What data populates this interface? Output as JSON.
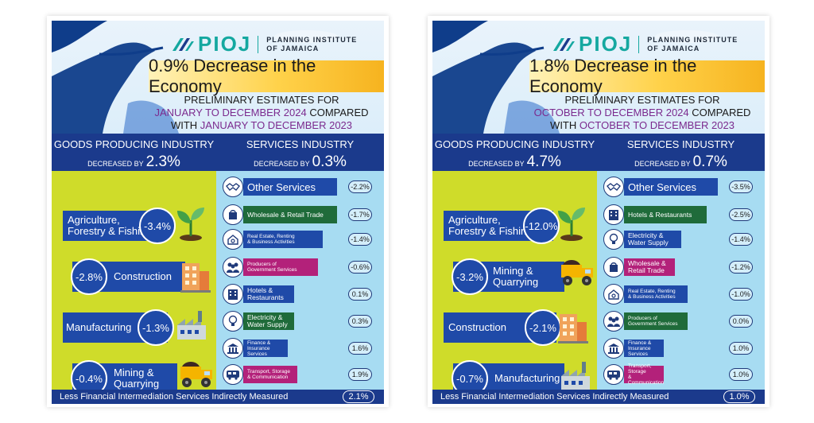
{
  "left": {
    "logo": {
      "brand": "PIOJ",
      "org_line1": "PLANNING INSTITUTE",
      "org_line2": "OF JAMAICA"
    },
    "headline": "0.9% Decrease in the Economy",
    "prelim_line1": "PRELIMINARY ESTIMATES FOR",
    "period_current": "JANUARY TO DECEMBER 2024",
    "compared": " COMPARED",
    "with_text": "WITH ",
    "period_prior": "JANUARY TO DECEMBER 2023",
    "goods": {
      "title": "GOODS PRODUCING INDUSTRY",
      "decreased_by": "DECREASED BY",
      "value": "2.3%"
    },
    "services": {
      "title": "SERVICES INDUSTRY",
      "decreased_by": "DECREASED BY",
      "value": "0.3%"
    },
    "goods_items": [
      {
        "label": "Agriculture,\nForestry & Fishing",
        "value": "-3.4%",
        "icon": "plant-icon"
      },
      {
        "label": "Construction",
        "value": "-2.8%",
        "icon": "building-icon"
      },
      {
        "label": "Manufacturing",
        "value": "-1.3%",
        "icon": "factory-icon"
      },
      {
        "label": "Mining &\nQuarrying",
        "value": "-0.4%",
        "icon": "truck-icon"
      }
    ],
    "service_items": [
      {
        "label": "Other Services",
        "value": "-2.2%",
        "icon": "handshake-icon"
      },
      {
        "label": "Wholesale & Retail Trade",
        "value": "-1.7%",
        "icon": "bag-icon"
      },
      {
        "label": "Real Estate, Renting\n& Business Activities",
        "value": "-1.4%",
        "icon": "house-search-icon"
      },
      {
        "label": "Producers of\nGovernment Services",
        "value": "-0.6%",
        "icon": "people-icon"
      },
      {
        "label": "Hotels &\nRestaurants",
        "value": "0.1%",
        "icon": "hotel-icon"
      },
      {
        "label": "Electricity &\nWater Supply",
        "value": "0.3%",
        "icon": "bulb-icon"
      },
      {
        "label": "Finance &\nInsurance\nServices",
        "value": "1.6%",
        "icon": "bank-icon"
      },
      {
        "label": "Transport, Storage\n& Communication",
        "value": "1.9%",
        "icon": "bus-icon"
      }
    ],
    "footer": {
      "label": "Less Financial Intermediation Services Indirectly Measured",
      "value": "2.1%"
    }
  },
  "right": {
    "logo": {
      "brand": "PIOJ",
      "org_line1": "PLANNING INSTITUTE",
      "org_line2": "OF JAMAICA"
    },
    "headline": "1.8% Decrease in the Economy",
    "prelim_line1": "PRELIMINARY ESTIMATES FOR",
    "period_current": "OCTOBER TO DECEMBER 2024",
    "compared": " COMPARED",
    "with_text": "WITH ",
    "period_prior": "OCTOBER TO DECEMBER 2023",
    "goods": {
      "title": "GOODS PRODUCING INDUSTRY",
      "decreased_by": "DECREASED BY",
      "value": "4.7%"
    },
    "services": {
      "title": "SERVICES INDUSTRY",
      "decreased_by": "DECREASED BY",
      "value": "0.7%"
    },
    "goods_items": [
      {
        "label": "Agriculture,\nForestry & Fishing",
        "value": "-12.0%",
        "icon": "plant-icon"
      },
      {
        "label": "Mining &\nQuarrying",
        "value": "-3.2%",
        "icon": "truck-icon"
      },
      {
        "label": "Construction",
        "value": "-2.1%",
        "icon": "building-icon"
      },
      {
        "label": "Manufacturing",
        "value": "-0.7%",
        "icon": "factory-icon"
      }
    ],
    "service_items": [
      {
        "label": "Other Services",
        "value": "-3.5%",
        "icon": "handshake-icon"
      },
      {
        "label": "Hotels & Restaurants",
        "value": "-2.5%",
        "icon": "hotel-icon"
      },
      {
        "label": "Electricity &\nWater Supply",
        "value": "-1.4%",
        "icon": "bulb-icon"
      },
      {
        "label": "Wholesale &\nRetail Trade",
        "value": "-1.2%",
        "icon": "bag-icon"
      },
      {
        "label": "Real Estate, Renting\n& Business Activities",
        "value": "-1.0%",
        "icon": "house-search-icon"
      },
      {
        "label": "Producers of\nGovernment Services",
        "value": "0.0%",
        "icon": "people-icon"
      },
      {
        "label": "Finance &\nInsurance\nServices",
        "value": "1.0%",
        "icon": "bank-icon"
      },
      {
        "label": "Transport, Storage\n& Communication",
        "value": "1.0%",
        "icon": "bus-icon"
      }
    ],
    "footer": {
      "label": "Less Financial Intermediation Services Indirectly Measured",
      "value": "1.0%"
    }
  },
  "colors": {
    "navy": "#1b3a8c",
    "blue": "#1f4aa8",
    "green": "#1f6b3a",
    "magenta": "#b3217a",
    "lime": "#cfdc2a",
    "sky": "#a7dcf2",
    "gold": "#ffd24a",
    "teal": "#15a8a0",
    "purple": "#7b2a8e"
  }
}
